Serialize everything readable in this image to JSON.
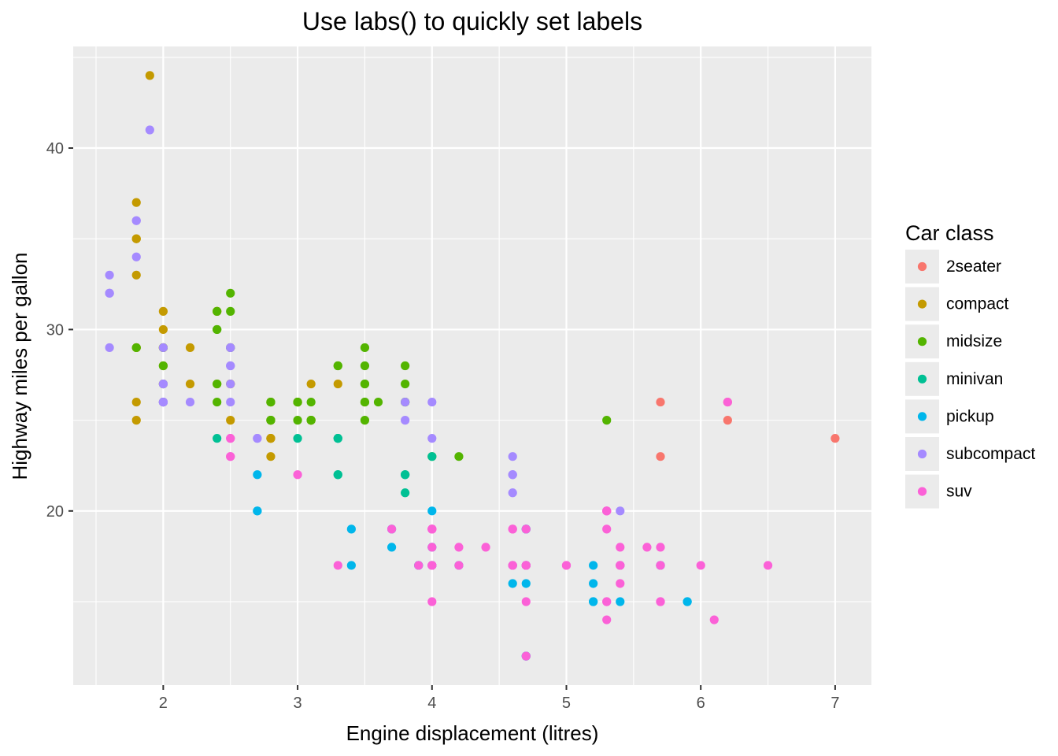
{
  "chart_data": {
    "type": "scatter",
    "title": "Use labs() to quickly set labels",
    "xlabel": "Engine displacement (litres)",
    "ylabel": "Highway miles per gallon",
    "xlim": [
      1.33,
      7.27
    ],
    "ylim": [
      10.4,
      45.6
    ],
    "x_ticks": [
      2,
      3,
      4,
      5,
      6,
      7
    ],
    "x_tick_labels": [
      "2",
      "3",
      "4",
      "5",
      "6",
      "7"
    ],
    "y_ticks": [
      20,
      30,
      40
    ],
    "y_tick_labels": [
      "20",
      "30",
      "40"
    ],
    "grid": true,
    "legend": {
      "title": "Car class",
      "position": "right",
      "items": [
        {
          "label": "2seater",
          "color": "#F8766D"
        },
        {
          "label": "compact",
          "color": "#C49A00"
        },
        {
          "label": "midsize",
          "color": "#53B400"
        },
        {
          "label": "minivan",
          "color": "#00C094"
        },
        {
          "label": "pickup",
          "color": "#00B6EB"
        },
        {
          "label": "subcompact",
          "color": "#A58AFF"
        },
        {
          "label": "suv",
          "color": "#FB61D7"
        }
      ]
    },
    "series": [
      {
        "name": "2seater",
        "color": "#F8766D",
        "points": [
          [
            5.7,
            26
          ],
          [
            5.7,
            23
          ],
          [
            6.2,
            26
          ],
          [
            6.2,
            25
          ],
          [
            7.0,
            24
          ]
        ]
      },
      {
        "name": "compact",
        "color": "#C49A00",
        "points": [
          [
            1.8,
            29
          ],
          [
            1.8,
            29
          ],
          [
            2.0,
            31
          ],
          [
            2.0,
            30
          ],
          [
            2.8,
            26
          ],
          [
            2.8,
            26
          ],
          [
            3.1,
            27
          ],
          [
            1.8,
            26
          ],
          [
            1.8,
            25
          ],
          [
            2.0,
            28
          ],
          [
            2.0,
            27
          ],
          [
            2.8,
            25
          ],
          [
            2.8,
            25
          ],
          [
            3.1,
            25
          ],
          [
            3.1,
            25
          ],
          [
            2.2,
            29
          ],
          [
            2.2,
            27
          ],
          [
            2.4,
            31
          ],
          [
            2.4,
            31
          ],
          [
            3.0,
            26
          ],
          [
            3.0,
            26
          ],
          [
            3.3,
            27
          ],
          [
            1.8,
            33
          ],
          [
            1.8,
            35
          ],
          [
            1.8,
            37
          ],
          [
            1.8,
            35
          ],
          [
            2.0,
            29
          ],
          [
            2.0,
            26
          ],
          [
            2.5,
            27
          ],
          [
            2.5,
            25
          ],
          [
            2.5,
            27
          ],
          [
            2.8,
            24
          ],
          [
            2.8,
            24
          ],
          [
            2.8,
            23
          ],
          [
            1.9,
            44
          ],
          [
            2.0,
            29
          ],
          [
            2.4,
            27
          ],
          [
            2.5,
            29
          ],
          [
            2.8,
            24
          ]
        ]
      },
      {
        "name": "midsize",
        "color": "#53B400",
        "points": [
          [
            3.1,
            26
          ],
          [
            2.0,
            28
          ],
          [
            2.0,
            27
          ],
          [
            2.0,
            29
          ],
          [
            2.8,
            25
          ],
          [
            2.8,
            25
          ],
          [
            3.1,
            25
          ],
          [
            2.4,
            30
          ],
          [
            2.4,
            31
          ],
          [
            3.1,
            25
          ],
          [
            3.5,
            27
          ],
          [
            3.6,
            26
          ],
          [
            2.4,
            26
          ],
          [
            3.0,
            26
          ],
          [
            3.3,
            28
          ],
          [
            3.3,
            28
          ],
          [
            3.8,
            26
          ],
          [
            3.8,
            26
          ],
          [
            3.8,
            27
          ],
          [
            4.2,
            23
          ],
          [
            2.4,
            27
          ],
          [
            2.4,
            30
          ],
          [
            2.5,
            32
          ],
          [
            2.5,
            29
          ],
          [
            3.5,
            26
          ],
          [
            3.5,
            29
          ],
          [
            2.5,
            31
          ],
          [
            2.5,
            29
          ],
          [
            3.0,
            26
          ],
          [
            3.5,
            27
          ],
          [
            3.5,
            28
          ],
          [
            3.5,
            25
          ],
          [
            3.8,
            28
          ],
          [
            4.0,
            23
          ],
          [
            5.3,
            25
          ],
          [
            1.8,
            29
          ],
          [
            2.0,
            26
          ],
          [
            2.8,
            26
          ],
          [
            2.8,
            26
          ],
          [
            3.0,
            25
          ],
          [
            3.5,
            26
          ]
        ]
      },
      {
        "name": "minivan",
        "color": "#00C094",
        "points": [
          [
            2.4,
            24
          ],
          [
            3.0,
            24
          ],
          [
            3.3,
            22
          ],
          [
            3.3,
            22
          ],
          [
            3.3,
            24
          ],
          [
            3.3,
            24
          ],
          [
            3.3,
            24
          ],
          [
            3.8,
            22
          ],
          [
            3.8,
            22
          ],
          [
            3.8,
            21
          ],
          [
            4.0,
            23
          ]
        ]
      },
      {
        "name": "pickup",
        "color": "#00B6EB",
        "points": [
          [
            3.7,
            19
          ],
          [
            3.7,
            18
          ],
          [
            3.9,
            17
          ],
          [
            3.9,
            17
          ],
          [
            4.7,
            19
          ],
          [
            4.7,
            19
          ],
          [
            4.7,
            12
          ],
          [
            5.2,
            17
          ],
          [
            5.2,
            15
          ],
          [
            5.7,
            17
          ],
          [
            5.9,
            15
          ],
          [
            4.7,
            17
          ],
          [
            4.7,
            17
          ],
          [
            4.7,
            16
          ],
          [
            4.7,
            12
          ],
          [
            4.7,
            17
          ],
          [
            5.2,
            15
          ],
          [
            5.2,
            16
          ],
          [
            5.7,
            17
          ],
          [
            5.9,
            15
          ],
          [
            2.7,
            20
          ],
          [
            2.7,
            20
          ],
          [
            2.7,
            22
          ],
          [
            3.4,
            17
          ],
          [
            3.4,
            19
          ],
          [
            4.0,
            18
          ],
          [
            4.0,
            20
          ],
          [
            4.0,
            17
          ],
          [
            4.2,
            17
          ],
          [
            4.6,
            17
          ],
          [
            4.6,
            16
          ],
          [
            5.4,
            15
          ],
          [
            5.4,
            17
          ],
          [
            4.0,
            17
          ]
        ]
      },
      {
        "name": "subcompact",
        "color": "#A58AFF",
        "points": [
          [
            3.8,
            26
          ],
          [
            3.8,
            25
          ],
          [
            4.0,
            26
          ],
          [
            4.0,
            24
          ],
          [
            4.6,
            21
          ],
          [
            4.6,
            22
          ],
          [
            4.6,
            23
          ],
          [
            4.6,
            22
          ],
          [
            5.4,
            20
          ],
          [
            1.6,
            33
          ],
          [
            1.6,
            32
          ],
          [
            1.6,
            32
          ],
          [
            1.6,
            29
          ],
          [
            1.6,
            32
          ],
          [
            1.8,
            34
          ],
          [
            1.8,
            36
          ],
          [
            1.8,
            36
          ],
          [
            2.0,
            29
          ],
          [
            2.0,
            26
          ],
          [
            2.0,
            27
          ],
          [
            1.9,
            41
          ],
          [
            2.2,
            26
          ],
          [
            2.5,
            28
          ],
          [
            2.5,
            29
          ],
          [
            2.5,
            29
          ],
          [
            2.7,
            24
          ],
          [
            2.0,
            26
          ],
          [
            2.5,
            26
          ],
          [
            2.7,
            24
          ],
          [
            2.5,
            28
          ],
          [
            2.0,
            26
          ],
          [
            2.0,
            26
          ],
          [
            2.0,
            27
          ],
          [
            2.0,
            26
          ],
          [
            2.5,
            27
          ]
        ]
      },
      {
        "name": "suv",
        "color": "#FB61D7",
        "points": [
          [
            5.3,
            20
          ],
          [
            5.3,
            15
          ],
          [
            5.3,
            20
          ],
          [
            5.7,
            17
          ],
          [
            6.0,
            17
          ],
          [
            5.7,
            18
          ],
          [
            5.7,
            17
          ],
          [
            6.2,
            26
          ],
          [
            6.5,
            17
          ],
          [
            4.0,
            19
          ],
          [
            4.0,
            17
          ],
          [
            4.0,
            15
          ],
          [
            4.6,
            17
          ],
          [
            5.0,
            17
          ],
          [
            4.0,
            17
          ],
          [
            4.2,
            18
          ],
          [
            4.6,
            19
          ],
          [
            4.6,
            17
          ],
          [
            4.7,
            17
          ],
          [
            5.4,
            18
          ],
          [
            5.4,
            17
          ],
          [
            3.0,
            22
          ],
          [
            3.7,
            19
          ],
          [
            4.0,
            18
          ],
          [
            4.7,
            17
          ],
          [
            4.7,
            15
          ],
          [
            4.7,
            17
          ],
          [
            5.7,
            15
          ],
          [
            6.1,
            14
          ],
          [
            4.0,
            19
          ],
          [
            4.2,
            17
          ],
          [
            4.4,
            18
          ],
          [
            4.6,
            19
          ],
          [
            5.4,
            17
          ],
          [
            5.4,
            17
          ],
          [
            5.4,
            16
          ],
          [
            4.0,
            17
          ],
          [
            4.0,
            19
          ],
          [
            4.6,
            17
          ],
          [
            5.0,
            17
          ],
          [
            2.5,
            24
          ],
          [
            2.5,
            23
          ],
          [
            3.3,
            17
          ],
          [
            3.9,
            17
          ],
          [
            4.7,
            17
          ],
          [
            4.7,
            17
          ],
          [
            5.3,
            14
          ],
          [
            5.3,
            19
          ],
          [
            5.6,
            18
          ],
          [
            2.5,
            23
          ],
          [
            2.5,
            24
          ],
          [
            4.7,
            19
          ],
          [
            5.3,
            15
          ],
          [
            5.3,
            20
          ],
          [
            5.7,
            15
          ],
          [
            4.0,
            19
          ],
          [
            4.7,
            12
          ],
          [
            5.3,
            20
          ]
        ]
      }
    ]
  }
}
